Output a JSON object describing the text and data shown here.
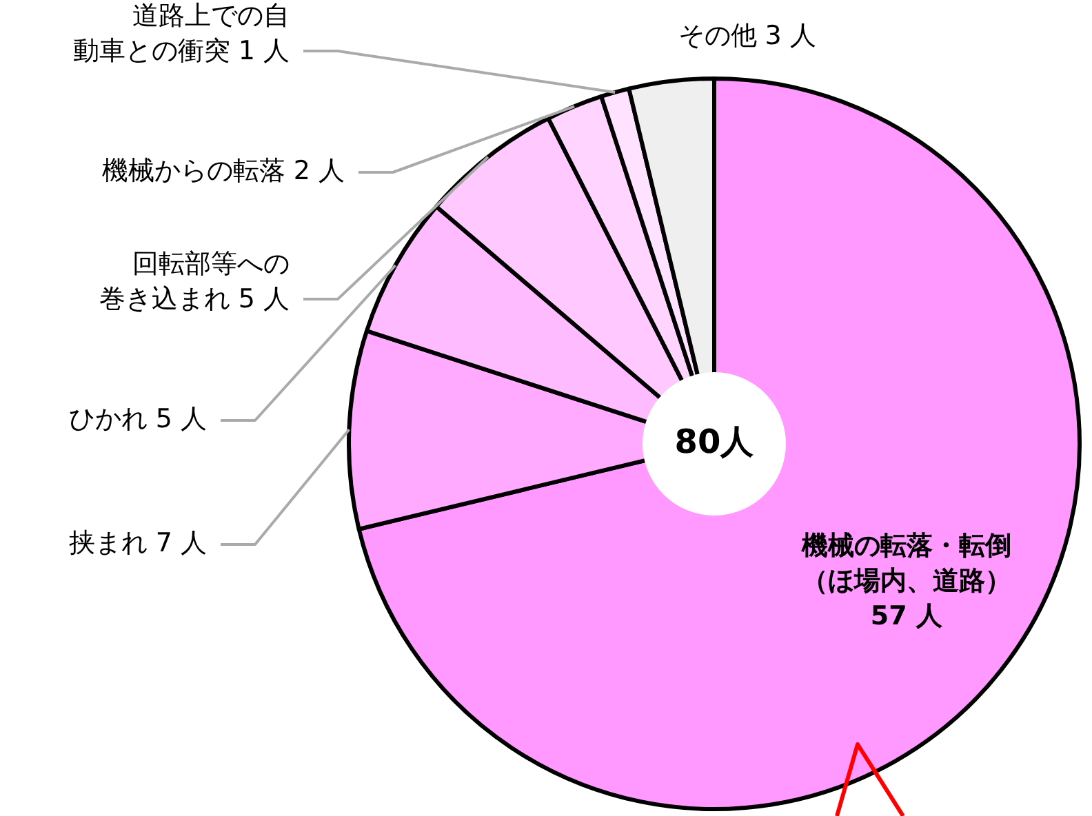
{
  "chart_data": {
    "type": "pie",
    "categories": [
      "機械の転落・転倒（ほ場内、道路）",
      "挟まれ",
      "ひかれ",
      "回転部等への巻き込まれ",
      "機械からの転落",
      "道路上での自動車との衝突",
      "その他"
    ],
    "values": [
      57,
      7,
      5,
      5,
      2,
      1,
      3
    ],
    "value_labels": [
      "57 人",
      "7 人",
      "5 人",
      "5 人",
      "2 人",
      "1 人",
      "3 人"
    ],
    "colors": [
      "#ff99ff",
      "#ffaaff",
      "#ffbbff",
      "#ffc8ff",
      "#ffd4ff",
      "#ffe2ff",
      "#efefef"
    ],
    "annotations": [
      "80人"
    ]
  }
}
